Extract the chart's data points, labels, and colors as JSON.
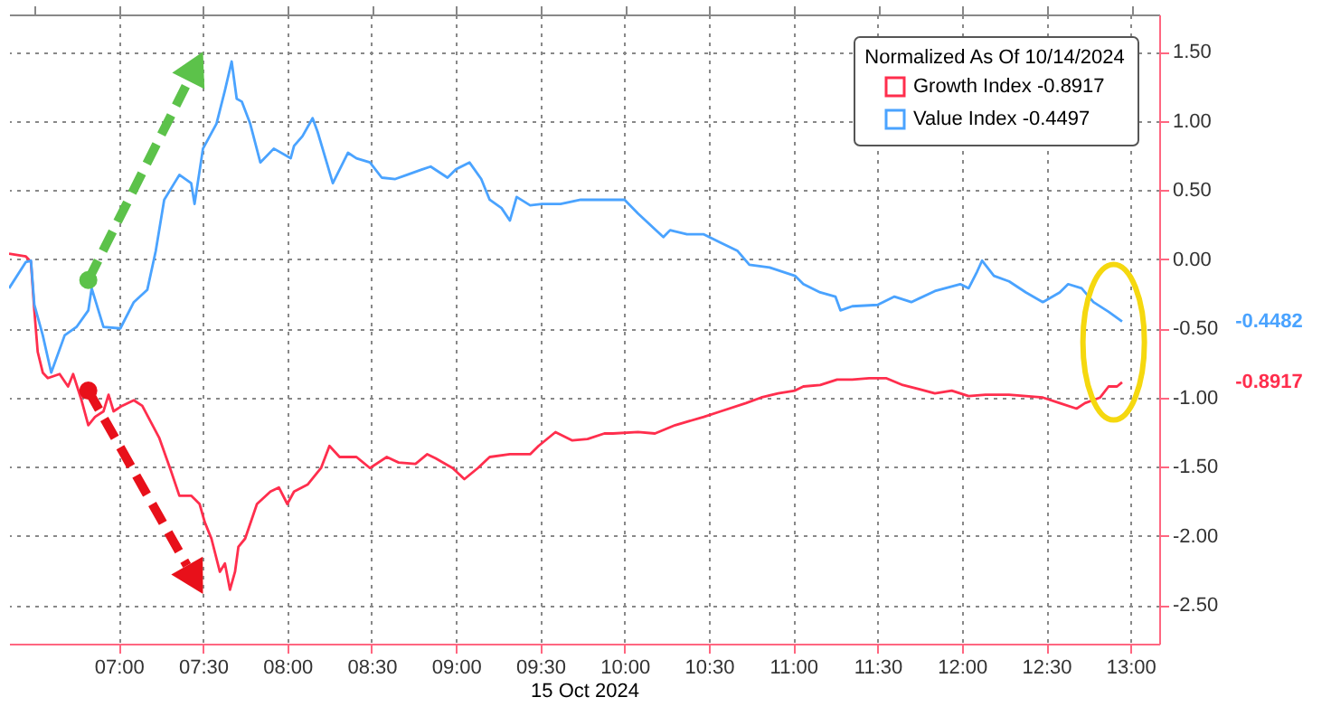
{
  "chart_data": {
    "type": "line",
    "legend_title": "Normalized As Of 10/14/2024",
    "xlabel": "15 Oct 2024",
    "xlim": [
      6.35,
      13.17
    ],
    "ylim": [
      -2.78,
      1.77
    ],
    "xticks": [
      {
        "value": 7,
        "label": "07:00"
      },
      {
        "value": 7.5,
        "label": "07:30"
      },
      {
        "value": 8,
        "label": "08:00"
      },
      {
        "value": 8.5,
        "label": "08:30"
      },
      {
        "value": 9,
        "label": "09:00"
      },
      {
        "value": 9.5,
        "label": "09:30"
      },
      {
        "value": 10,
        "label": "10:00"
      },
      {
        "value": 10.5,
        "label": "10:30"
      },
      {
        "value": 11,
        "label": "11:00"
      },
      {
        "value": 11.5,
        "label": "11:30"
      },
      {
        "value": 12,
        "label": "12:00"
      },
      {
        "value": 12.5,
        "label": "12:30"
      },
      {
        "value": 13,
        "label": "13:00"
      }
    ],
    "yticks": [
      {
        "value": 1.5,
        "label": "1.50"
      },
      {
        "value": 1,
        "label": "1.00"
      },
      {
        "value": 0.5,
        "label": "0.50"
      },
      {
        "value": 0,
        "label": "0.00"
      },
      {
        "value": -0.5,
        "label": "-0.50"
      },
      {
        "value": -1,
        "label": "-1.00"
      },
      {
        "value": -1.5,
        "label": "-1.50"
      },
      {
        "value": -2,
        "label": "-2.00"
      },
      {
        "value": -2.5,
        "label": "-2.50"
      }
    ],
    "grid": true,
    "legend": "top right",
    "line_style": "solid",
    "series": [
      {
        "name": "Growth Index -0.8917",
        "color": "#ff2e4d",
        "x": [
          6.35,
          6.45,
          6.48,
          6.5,
          6.52,
          6.55,
          6.58,
          6.65,
          6.7,
          6.73,
          6.78,
          6.82,
          6.86,
          6.91,
          6.94,
          6.97,
          7.02,
          7.09,
          7.14,
          7.24,
          7.31,
          7.36,
          7.43,
          7.48,
          7.51,
          7.55,
          7.6,
          7.63,
          7.66,
          7.69,
          7.71,
          7.75,
          7.82,
          7.9,
          7.95,
          8.0,
          8.04,
          8.12,
          8.2,
          8.25,
          8.31,
          8.41,
          8.49,
          8.59,
          8.66,
          8.76,
          8.83,
          8.88,
          8.98,
          9.05,
          9.13,
          9.2,
          9.32,
          9.44,
          9.49,
          9.59,
          9.69,
          9.78,
          9.88,
          9.93,
          10.08,
          10.18,
          10.3,
          10.47,
          10.57,
          10.72,
          10.81,
          10.91,
          11.01,
          11.06,
          11.16,
          11.26,
          11.35,
          11.45,
          11.55,
          11.65,
          11.75,
          11.84,
          11.94,
          12.04,
          12.14,
          12.28,
          12.48,
          12.58,
          12.68,
          12.73,
          12.82,
          12.87,
          12.92,
          12.95
        ],
        "values": [
          0.04,
          0.02,
          -0.02,
          -0.37,
          -0.67,
          -0.82,
          -0.86,
          -0.83,
          -0.92,
          -0.83,
          -1.02,
          -1.2,
          -1.14,
          -1.1,
          -0.98,
          -1.1,
          -1.06,
          -1.02,
          -1.06,
          -1.29,
          -1.53,
          -1.71,
          -1.71,
          -1.77,
          -1.9,
          -2.02,
          -2.26,
          -2.2,
          -2.39,
          -2.26,
          -2.08,
          -2.02,
          -1.77,
          -1.68,
          -1.65,
          -1.77,
          -1.68,
          -1.63,
          -1.51,
          -1.35,
          -1.43,
          -1.43,
          -1.51,
          -1.43,
          -1.47,
          -1.48,
          -1.41,
          -1.44,
          -1.51,
          -1.59,
          -1.51,
          -1.43,
          -1.41,
          -1.41,
          -1.35,
          -1.25,
          -1.31,
          -1.3,
          -1.26,
          -1.26,
          -1.25,
          -1.26,
          -1.2,
          -1.14,
          -1.1,
          -1.04,
          -1.0,
          -0.97,
          -0.95,
          -0.92,
          -0.91,
          -0.87,
          -0.87,
          -0.86,
          -0.86,
          -0.91,
          -0.94,
          -0.97,
          -0.95,
          -0.99,
          -0.98,
          -0.98,
          -1.0,
          -1.04,
          -1.08,
          -1.04,
          -1.0,
          -0.92,
          -0.92,
          -0.89
        ]
      },
      {
        "name": "Value Index -0.4497",
        "color": "#4aa3ff",
        "x": [
          6.35,
          6.45,
          6.48,
          6.5,
          6.55,
          6.6,
          6.68,
          6.75,
          6.82,
          6.84,
          6.91,
          7.01,
          7.09,
          7.17,
          7.22,
          7.27,
          7.33,
          7.36,
          7.43,
          7.45,
          7.5,
          7.58,
          7.63,
          7.67,
          7.7,
          7.73,
          7.78,
          7.84,
          7.92,
          8.02,
          8.04,
          8.09,
          8.15,
          8.18,
          8.27,
          8.36,
          8.41,
          8.49,
          8.56,
          8.64,
          8.71,
          8.8,
          8.85,
          8.95,
          9.0,
          9.08,
          9.15,
          9.2,
          9.27,
          9.32,
          9.36,
          9.44,
          9.51,
          9.62,
          9.74,
          9.88,
          10.0,
          10.08,
          10.23,
          10.27,
          10.37,
          10.47,
          10.57,
          10.67,
          10.74,
          10.86,
          11.01,
          11.06,
          11.16,
          11.25,
          11.28,
          11.35,
          11.5,
          11.6,
          11.7,
          11.84,
          11.99,
          12.04,
          12.09,
          12.12,
          12.19,
          12.28,
          12.38,
          12.48,
          12.58,
          12.63,
          12.71,
          12.78,
          12.87,
          12.95
        ],
        "values": [
          -0.21,
          -0.02,
          -0.01,
          -0.33,
          -0.55,
          -0.82,
          -0.55,
          -0.49,
          -0.37,
          -0.21,
          -0.49,
          -0.5,
          -0.31,
          -0.22,
          0.06,
          0.43,
          0.55,
          0.61,
          0.55,
          0.4,
          0.8,
          0.98,
          1.22,
          1.43,
          1.16,
          1.14,
          0.98,
          0.7,
          0.8,
          0.73,
          0.82,
          0.89,
          1.02,
          0.92,
          0.55,
          0.77,
          0.73,
          0.7,
          0.59,
          0.58,
          0.61,
          0.65,
          0.67,
          0.59,
          0.65,
          0.7,
          0.58,
          0.43,
          0.37,
          0.28,
          0.45,
          0.39,
          0.4,
          0.4,
          0.43,
          0.43,
          0.43,
          0.33,
          0.16,
          0.21,
          0.18,
          0.18,
          0.12,
          0.06,
          -0.04,
          -0.06,
          -0.12,
          -0.18,
          -0.24,
          -0.27,
          -0.37,
          -0.34,
          -0.33,
          -0.27,
          -0.31,
          -0.23,
          -0.18,
          -0.21,
          -0.09,
          -0.01,
          -0.12,
          -0.16,
          -0.24,
          -0.31,
          -0.24,
          -0.18,
          -0.21,
          -0.31,
          -0.38,
          -0.45
        ]
      }
    ],
    "annotations": [
      "-0.4482",
      "-0.8917"
    ]
  }
}
